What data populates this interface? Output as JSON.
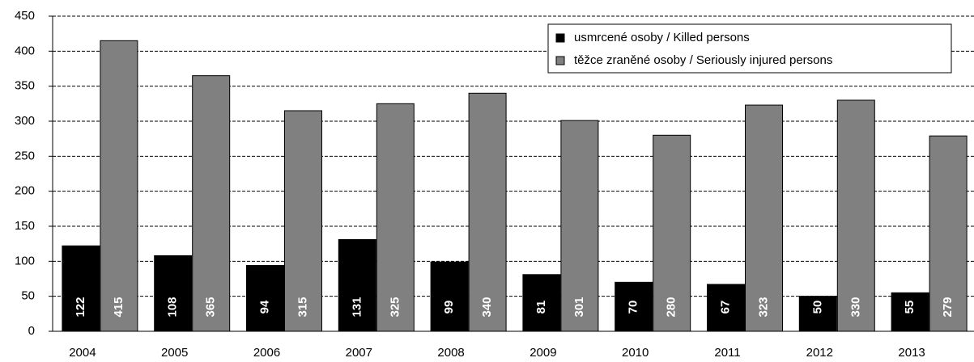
{
  "chart_data": {
    "type": "bar",
    "categories": [
      "2004",
      "2005",
      "2006",
      "2007",
      "2008",
      "2009",
      "2010",
      "2011",
      "2012",
      "2013"
    ],
    "series": [
      {
        "name": "usmrcené osoby / Killed persons",
        "color": "#000000",
        "values": [
          122,
          108,
          94,
          131,
          99,
          81,
          70,
          67,
          50,
          55
        ]
      },
      {
        "name": "těžce zraněné osoby / Seriously injured persons",
        "color": "#808080",
        "values": [
          415,
          365,
          315,
          325,
          340,
          301,
          280,
          323,
          330,
          279
        ]
      }
    ],
    "ylim": [
      0,
      450
    ],
    "yticks": [
      0,
      50,
      100,
      150,
      200,
      250,
      300,
      350,
      400,
      450
    ],
    "grid": true,
    "legend": "upper right"
  }
}
